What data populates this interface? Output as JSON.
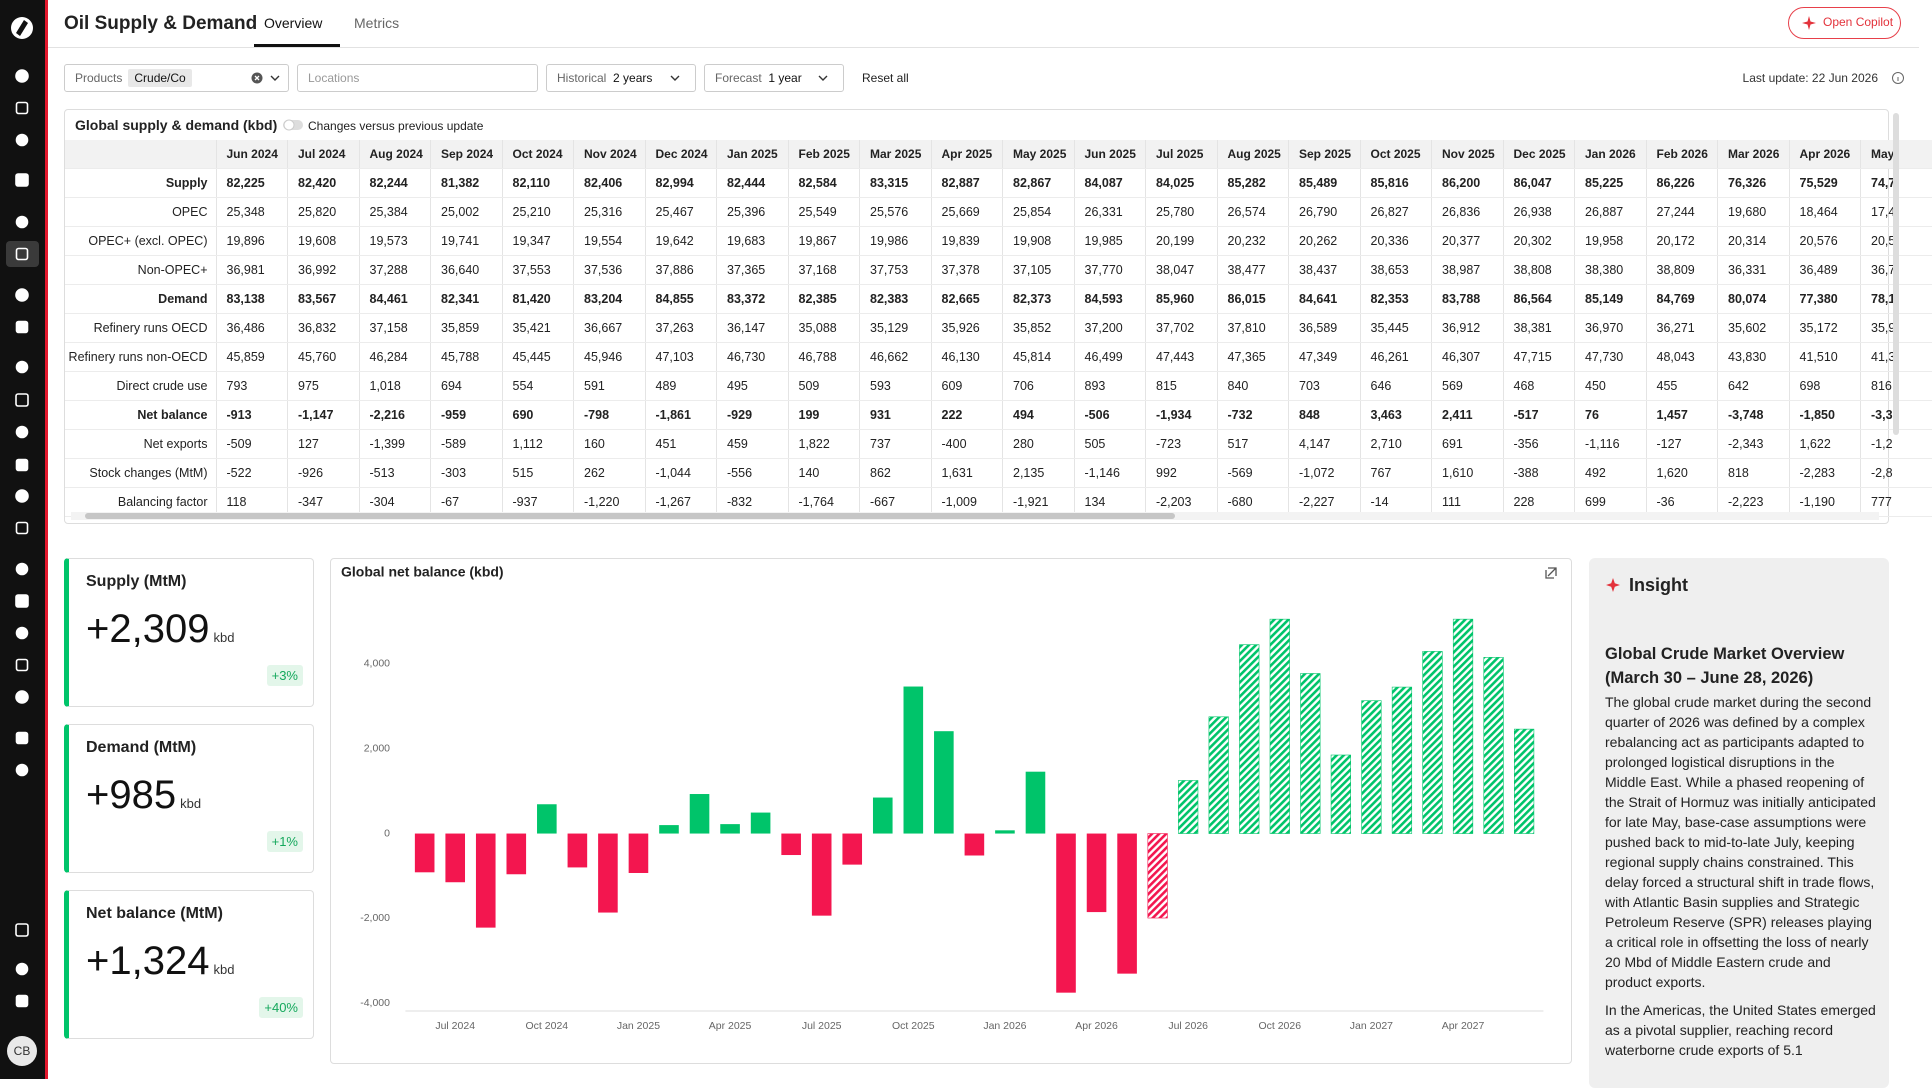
{
  "header": {
    "title": "Oil Supply & Demand",
    "tabs": [
      "Overview",
      "Metrics"
    ],
    "copilot_button": "Open Copilot"
  },
  "filters": {
    "products_label": "Products",
    "products_value": "Crude/Co",
    "locations_placeholder": "Locations",
    "historical_label": "Historical",
    "historical_value": "2 years",
    "forecast_label": "Forecast",
    "forecast_value": "1 year",
    "reset": "Reset all",
    "last_update": "Last update: 22 Jun 2026"
  },
  "table": {
    "title": "Global supply & demand (kbd)",
    "toggle_label": "Changes versus previous update",
    "columns": [
      "Jun 2024",
      "Jul 2024",
      "Aug 2024",
      "Sep 2024",
      "Oct 2024",
      "Nov 2024",
      "Dec 2024",
      "Jan 2025",
      "Feb 2025",
      "Mar 2025",
      "Apr 2025",
      "May 2025",
      "Jun 2025",
      "Jul 2025",
      "Aug 2025",
      "Sep 2025",
      "Oct 2025",
      "Nov 2025",
      "Dec 2025",
      "Jan 2026",
      "Feb 2026",
      "Mar 2026",
      "Apr 2026",
      "May"
    ],
    "rows": [
      {
        "label": "Supply",
        "emphasis": true,
        "values": [
          "82,225",
          "82,420",
          "82,244",
          "81,382",
          "82,110",
          "82,406",
          "82,994",
          "82,444",
          "82,584",
          "83,315",
          "82,887",
          "82,867",
          "84,087",
          "84,025",
          "85,282",
          "85,489",
          "85,816",
          "86,200",
          "86,047",
          "85,225",
          "86,226",
          "76,326",
          "75,529",
          "74,7"
        ]
      },
      {
        "label": "OPEC",
        "emphasis": false,
        "values": [
          "25,348",
          "25,820",
          "25,384",
          "25,002",
          "25,210",
          "25,316",
          "25,467",
          "25,396",
          "25,549",
          "25,576",
          "25,669",
          "25,854",
          "26,331",
          "25,780",
          "26,574",
          "26,790",
          "26,827",
          "26,836",
          "26,938",
          "26,887",
          "27,244",
          "19,680",
          "18,464",
          "17,4"
        ]
      },
      {
        "label": "OPEC+ (excl. OPEC)",
        "emphasis": false,
        "values": [
          "19,896",
          "19,608",
          "19,573",
          "19,741",
          "19,347",
          "19,554",
          "19,642",
          "19,683",
          "19,867",
          "19,986",
          "19,839",
          "19,908",
          "19,985",
          "20,199",
          "20,232",
          "20,262",
          "20,336",
          "20,377",
          "20,302",
          "19,958",
          "20,172",
          "20,314",
          "20,576",
          "20,5"
        ]
      },
      {
        "label": "Non-OPEC+",
        "emphasis": false,
        "values": [
          "36,981",
          "36,992",
          "37,288",
          "36,640",
          "37,553",
          "37,536",
          "37,886",
          "37,365",
          "37,168",
          "37,753",
          "37,378",
          "37,105",
          "37,770",
          "38,047",
          "38,477",
          "38,437",
          "38,653",
          "38,987",
          "38,808",
          "38,380",
          "38,809",
          "36,331",
          "36,489",
          "36,7"
        ]
      },
      {
        "label": "Demand",
        "emphasis": true,
        "values": [
          "83,138",
          "83,567",
          "84,461",
          "82,341",
          "81,420",
          "83,204",
          "84,855",
          "83,372",
          "82,385",
          "82,383",
          "82,665",
          "82,373",
          "84,593",
          "85,960",
          "86,015",
          "84,641",
          "82,353",
          "83,788",
          "86,564",
          "85,149",
          "84,769",
          "80,074",
          "77,380",
          "78,1"
        ]
      },
      {
        "label": "Refinery runs OECD",
        "emphasis": false,
        "values": [
          "36,486",
          "36,832",
          "37,158",
          "35,859",
          "35,421",
          "36,667",
          "37,263",
          "36,147",
          "35,088",
          "35,129",
          "35,926",
          "35,852",
          "37,200",
          "37,702",
          "37,810",
          "36,589",
          "35,445",
          "36,912",
          "38,381",
          "36,970",
          "36,271",
          "35,602",
          "35,172",
          "35,9"
        ]
      },
      {
        "label": "Refinery runs non-OECD",
        "emphasis": false,
        "values": [
          "45,859",
          "45,760",
          "46,284",
          "45,788",
          "45,445",
          "45,946",
          "47,103",
          "46,730",
          "46,788",
          "46,662",
          "46,130",
          "45,814",
          "46,499",
          "47,443",
          "47,365",
          "47,349",
          "46,261",
          "46,307",
          "47,715",
          "47,730",
          "48,043",
          "43,830",
          "41,510",
          "41,3"
        ]
      },
      {
        "label": "Direct crude use",
        "emphasis": false,
        "values": [
          "793",
          "975",
          "1,018",
          "694",
          "554",
          "591",
          "489",
          "495",
          "509",
          "593",
          "609",
          "706",
          "893",
          "815",
          "840",
          "703",
          "646",
          "569",
          "468",
          "450",
          "455",
          "642",
          "698",
          "816"
        ]
      },
      {
        "label": "Net balance",
        "emphasis": true,
        "values": [
          "-913",
          "-1,147",
          "-2,216",
          "-959",
          "690",
          "-798",
          "-1,861",
          "-929",
          "199",
          "931",
          "222",
          "494",
          "-506",
          "-1,934",
          "-732",
          "848",
          "3,463",
          "2,411",
          "-517",
          "76",
          "1,457",
          "-3,748",
          "-1,850",
          "-3,3"
        ]
      },
      {
        "label": "Net exports",
        "emphasis": false,
        "values": [
          "-509",
          "127",
          "-1,399",
          "-589",
          "1,112",
          "160",
          "451",
          "459",
          "1,822",
          "737",
          "-400",
          "280",
          "505",
          "-723",
          "517",
          "4,147",
          "2,710",
          "691",
          "-356",
          "-1,116",
          "-127",
          "-2,343",
          "1,622",
          "-1,2"
        ]
      },
      {
        "label": "Stock changes (MtM)",
        "emphasis": false,
        "values": [
          "-522",
          "-926",
          "-513",
          "-303",
          "515",
          "262",
          "-1,044",
          "-556",
          "140",
          "862",
          "1,631",
          "2,135",
          "-1,146",
          "992",
          "-569",
          "-1,072",
          "767",
          "1,610",
          "-388",
          "492",
          "1,620",
          "818",
          "-2,283",
          "-2,8"
        ]
      },
      {
        "label": "Balancing factor",
        "emphasis": false,
        "values": [
          "118",
          "-347",
          "-304",
          "-67",
          "-937",
          "-1,220",
          "-1,267",
          "-832",
          "-1,764",
          "-667",
          "-1,009",
          "-1,921",
          "134",
          "-2,203",
          "-680",
          "-2,227",
          "-14",
          "111",
          "228",
          "699",
          "-36",
          "-2,223",
          "-1,190",
          "777"
        ]
      }
    ]
  },
  "kpis": [
    {
      "label": "Supply (MtM)",
      "value": "+2,309",
      "unit": "kbd",
      "change": "+3%"
    },
    {
      "label": "Demand (MtM)",
      "value": "+985",
      "unit": "kbd",
      "change": "+1%"
    },
    {
      "label": "Net balance (MtM)",
      "value": "+1,324",
      "unit": "kbd",
      "change": "+40%"
    }
  ],
  "chart_data": {
    "type": "bar",
    "title": "Global net balance (kbd)",
    "categories": [
      null,
      "Jul 2024",
      null,
      null,
      "Oct 2024",
      null,
      null,
      "Jan 2025",
      null,
      null,
      "Apr 2025",
      null,
      null,
      "Jul 2025",
      null,
      null,
      "Oct 2025",
      null,
      null,
      "Jan 2026",
      null,
      null,
      "Apr 2026",
      null,
      null,
      "Jul 2026",
      null,
      null,
      "Oct 2026",
      null,
      null,
      "Jan 2027",
      null,
      null,
      "Apr 2027",
      null,
      null
    ],
    "values": [
      -913,
      -1147,
      -2216,
      -959,
      690,
      -798,
      -1861,
      -929,
      199,
      931,
      222,
      494,
      -506,
      -1934,
      -732,
      848,
      3463,
      2411,
      -517,
      76,
      1457,
      -3748,
      -1850,
      -3300,
      -1990,
      1250,
      2750,
      4450,
      5050,
      3770,
      1850,
      3130,
      3450,
      4290,
      5050,
      4150,
      2460
    ],
    "bar_style": [
      "solid",
      "solid",
      "solid",
      "solid",
      "solid",
      "solid",
      "solid",
      "solid",
      "solid",
      "solid",
      "solid",
      "solid",
      "solid",
      "solid",
      "solid",
      "solid",
      "solid",
      "solid",
      "solid",
      "solid",
      "solid",
      "solid",
      "solid",
      "solid",
      "hatched",
      "hatched",
      "hatched",
      "hatched",
      "hatched",
      "hatched",
      "hatched",
      "hatched",
      "hatched",
      "hatched",
      "hatched",
      "hatched",
      "hatched"
    ],
    "colors": {
      "positive": "#00c46a",
      "negative": "#f3164f"
    },
    "ylim": [
      -4180,
      5360
    ],
    "yticks": [
      {
        "value": -4000,
        "label": "-4,000"
      },
      {
        "value": -2000,
        "label": "-2,000"
      },
      0,
      {
        "value": 2000,
        "label": "2,000"
      },
      {
        "value": 4000,
        "label": "4,000"
      }
    ],
    "grid": false
  },
  "insight": {
    "title": "Insight",
    "heading": "Global Crude Market Overview (March 30 – June 28, 2026)",
    "paragraphs": [
      "The global crude market during the second quarter of 2026 was defined by a complex rebalancing act as participants adapted to prolonged logistical disruptions in the Middle East. While a phased reopening of the Strait of Hormuz was initially anticipated for late May, base-case assumptions were pushed back to mid-to-late July, keeping regional supply chains constrained. This delay forced a structural shift in trade flows, with Atlantic Basin supplies and Strategic Petroleum Reserve (SPR) releases playing a critical role in offsetting the loss of nearly 20 Mbd of Middle Eastern crude and product exports.",
      "In the Americas, the United States emerged as a pivotal supplier, reaching record waterborne crude exports of 5.1"
    ]
  },
  "user": {
    "initials": "CB"
  }
}
